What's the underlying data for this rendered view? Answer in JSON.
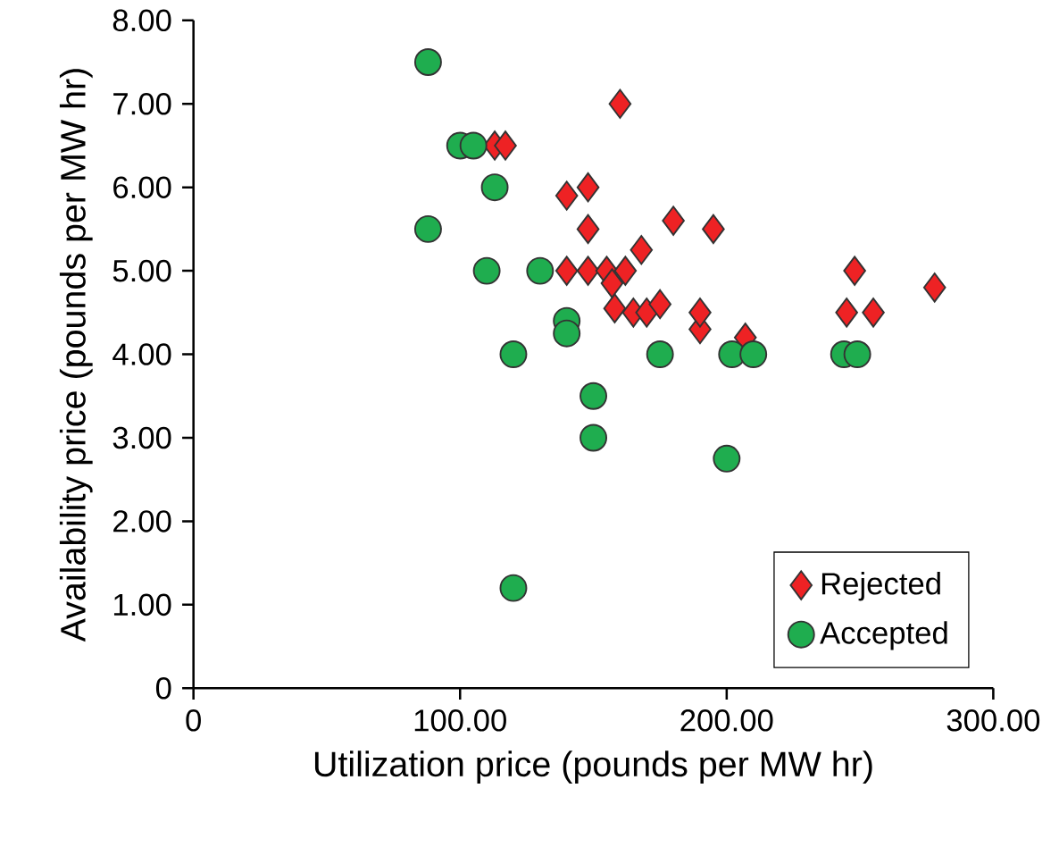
{
  "chart_data": {
    "type": "scatter",
    "xlabel": "Utilization price (pounds per MW hr)",
    "ylabel": "Availability price (pounds per MW hr)",
    "xlim": [
      0,
      300
    ],
    "ylim": [
      0,
      8
    ],
    "xticks": [
      0,
      {
        "value": 100,
        "label": "100.00"
      },
      {
        "value": 200,
        "label": "200.00"
      },
      {
        "value": 300,
        "label": "300.00"
      }
    ],
    "yticks": [
      0,
      {
        "value": 1,
        "label": "1.00"
      },
      {
        "value": 2,
        "label": "2.00"
      },
      {
        "value": 3,
        "label": "3.00"
      },
      {
        "value": 4,
        "label": "4.00"
      },
      {
        "value": 5,
        "label": "5.00"
      },
      {
        "value": 6,
        "label": "6.00"
      },
      {
        "value": 7,
        "label": "7.00"
      },
      {
        "value": 8,
        "label": "8.00"
      }
    ],
    "grid": false,
    "legend": "bottom right",
    "series": [
      {
        "name": "Rejected",
        "color": "#ee2224",
        "marker": "diamond",
        "x": [
          140,
          148,
          160,
          113,
          117,
          148,
          180,
          195,
          140,
          148,
          155,
          162,
          158,
          165,
          170,
          175,
          168,
          190,
          190,
          207,
          245,
          255,
          248,
          278,
          157
        ],
        "values": [
          5.9,
          6.0,
          7.0,
          6.5,
          6.5,
          5.5,
          5.6,
          5.5,
          5.0,
          5.0,
          5.0,
          5.0,
          4.55,
          4.5,
          4.5,
          4.6,
          5.25,
          4.3,
          4.5,
          4.2,
          4.5,
          4.5,
          5.0,
          4.8,
          4.85
        ]
      },
      {
        "name": "Accepted",
        "color": "#1fad4f",
        "marker": "circle",
        "x": [
          88,
          100,
          105,
          113,
          88,
          110,
          130,
          140,
          140,
          120,
          150,
          150,
          175,
          202,
          210,
          200,
          244,
          249,
          120
        ],
        "values": [
          7.5,
          6.5,
          6.5,
          6.0,
          5.5,
          5.0,
          5.0,
          4.4,
          4.25,
          4.0,
          3.5,
          3.0,
          4.0,
          4.0,
          4.0,
          2.75,
          4.0,
          4.0,
          1.2
        ]
      }
    ]
  }
}
